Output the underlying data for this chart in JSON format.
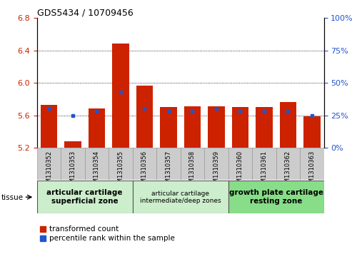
{
  "title": "GDS5434 / 10709456",
  "samples": [
    "GSM1310352",
    "GSM1310353",
    "GSM1310354",
    "GSM1310355",
    "GSM1310356",
    "GSM1310357",
    "GSM1310358",
    "GSM1310359",
    "GSM1310360",
    "GSM1310361",
    "GSM1310362",
    "GSM1310363"
  ],
  "bar_values": [
    5.73,
    5.28,
    5.68,
    6.49,
    5.97,
    5.7,
    5.71,
    5.71,
    5.7,
    5.7,
    5.76,
    5.59
  ],
  "percentile_values": [
    30,
    25,
    28,
    43,
    30,
    28,
    28,
    30,
    28,
    28,
    28,
    25
  ],
  "bar_bottom": 5.2,
  "ylim_left": [
    5.2,
    6.8
  ],
  "ylim_right": [
    0,
    100
  ],
  "yticks_left": [
    5.2,
    5.6,
    6.0,
    6.4,
    6.8
  ],
  "yticks_right": [
    0,
    25,
    50,
    75,
    100
  ],
  "bar_color": "#cc2200",
  "percentile_color": "#2255cc",
  "grid_color": "#000000",
  "bg_xticklabels": "#cccccc",
  "tissue_groups": [
    {
      "label": "articular cartilage\nsuperficial zone",
      "start": 0,
      "end": 3,
      "color": "#cceecc",
      "fontsize": 7.5,
      "bold": true
    },
    {
      "label": "articular cartilage\nintermediate/deep zones",
      "start": 4,
      "end": 7,
      "color": "#cceecc",
      "fontsize": 6.5,
      "bold": false
    },
    {
      "label": "growth plate cartilage\nresting zone",
      "start": 8,
      "end": 11,
      "color": "#88dd88",
      "fontsize": 7.5,
      "bold": true
    }
  ],
  "legend_labels": [
    "transformed count",
    "percentile rank within the sample"
  ],
  "legend_colors": [
    "#cc2200",
    "#2255cc"
  ],
  "tissue_label": "tissue",
  "yticklabel_color_left": "#cc2200",
  "yticklabel_color_right": "#2255cc"
}
